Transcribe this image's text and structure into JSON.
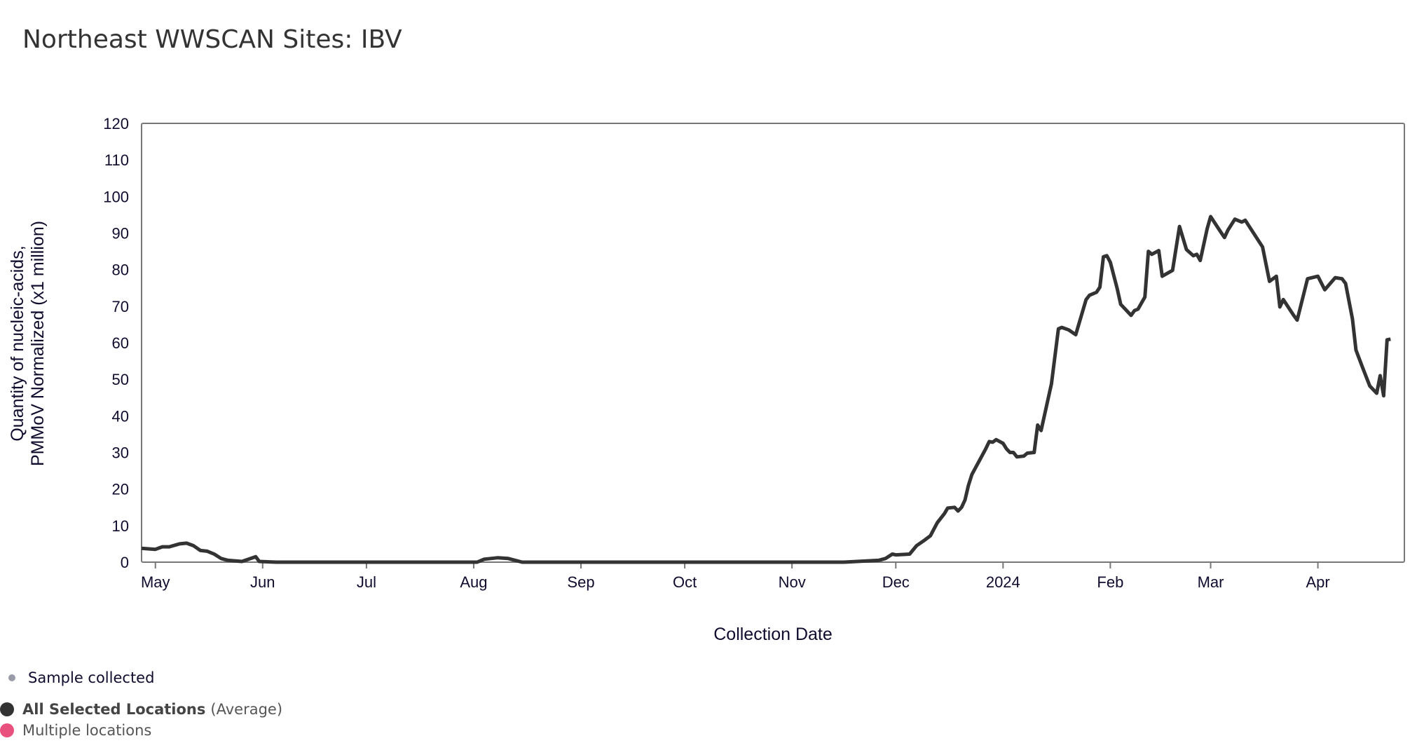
{
  "title": "Northeast WWSCAN Sites: IBV",
  "legend": {
    "sample": "Sample collected",
    "average_bold": "All Selected Locations",
    "average_suffix": "(Average)",
    "multiple": "Multiple locations",
    "colors": {
      "sample": "#9a9ba8",
      "average": "#333333",
      "multiple": "#e8507d"
    }
  },
  "chart_data": {
    "type": "line",
    "title": "Northeast WWSCAN Sites: IBV",
    "xlabel": "Collection Date",
    "ylabel": [
      "Quantity of nucleic-acids,",
      "PMMoV Normalized (x1 million)"
    ],
    "ylim": [
      0,
      120
    ],
    "xlim": [
      "2023-04-27",
      "2024-04-26"
    ],
    "yticks": [
      0,
      10,
      20,
      30,
      40,
      50,
      60,
      70,
      80,
      90,
      100,
      110,
      120
    ],
    "xticks": [
      {
        "date": "2023-05-01",
        "label": "May"
      },
      {
        "date": "2023-06-01",
        "label": "Jun"
      },
      {
        "date": "2023-07-01",
        "label": "Jul"
      },
      {
        "date": "2023-08-01",
        "label": "Aug"
      },
      {
        "date": "2023-09-01",
        "label": "Sep"
      },
      {
        "date": "2023-10-01",
        "label": "Oct"
      },
      {
        "date": "2023-11-01",
        "label": "Nov"
      },
      {
        "date": "2023-12-01",
        "label": "Dec"
      },
      {
        "date": "2024-01-01",
        "label": "2024"
      },
      {
        "date": "2024-02-01",
        "label": "Feb"
      },
      {
        "date": "2024-03-01",
        "label": "Mar"
      },
      {
        "date": "2024-04-01",
        "label": "Apr"
      }
    ],
    "grid": false,
    "series": [
      {
        "name": "All Selected Locations (Average)",
        "color": "#333333",
        "points": [
          [
            "2023-04-27",
            3.8
          ],
          [
            "2023-05-01",
            3.5
          ],
          [
            "2023-05-03",
            4.2
          ],
          [
            "2023-05-05",
            4.2
          ],
          [
            "2023-05-08",
            5.0
          ],
          [
            "2023-05-10",
            5.2
          ],
          [
            "2023-05-12",
            4.5
          ],
          [
            "2023-05-14",
            3.2
          ],
          [
            "2023-05-16",
            3.0
          ],
          [
            "2023-05-18",
            2.2
          ],
          [
            "2023-05-20",
            1.0
          ],
          [
            "2023-05-22",
            0.5
          ],
          [
            "2023-05-26",
            0.2
          ],
          [
            "2023-05-30",
            1.5
          ],
          [
            "2023-05-31",
            0.2
          ],
          [
            "2023-06-05",
            0
          ],
          [
            "2023-08-02",
            0
          ],
          [
            "2023-08-04",
            0.8
          ],
          [
            "2023-08-08",
            1.2
          ],
          [
            "2023-08-11",
            1.0
          ],
          [
            "2023-08-15",
            0
          ],
          [
            "2023-11-16",
            0
          ],
          [
            "2023-11-26",
            0.5
          ],
          [
            "2023-11-28",
            1.0
          ],
          [
            "2023-11-30",
            2.2
          ],
          [
            "2023-12-01",
            2.0
          ],
          [
            "2023-12-05",
            2.2
          ],
          [
            "2023-12-07",
            4.5
          ],
          [
            "2023-12-09",
            5.8
          ],
          [
            "2023-12-11",
            7.2
          ],
          [
            "2023-12-13",
            10.8
          ],
          [
            "2023-12-15",
            13.2
          ],
          [
            "2023-12-16",
            14.8
          ],
          [
            "2023-12-18",
            15.0
          ],
          [
            "2023-12-19",
            14.0
          ],
          [
            "2023-12-20",
            15.0
          ],
          [
            "2023-12-21",
            17.0
          ],
          [
            "2023-12-22",
            21.0
          ],
          [
            "2023-12-23",
            24.0
          ],
          [
            "2023-12-25",
            27.5
          ],
          [
            "2023-12-27",
            31.0
          ],
          [
            "2023-12-28",
            33.0
          ],
          [
            "2023-12-29",
            32.8
          ],
          [
            "2023-12-30",
            33.5
          ],
          [
            "2024-01-01",
            32.5
          ],
          [
            "2024-01-02",
            31.0
          ],
          [
            "2024-01-03",
            30.0
          ],
          [
            "2024-01-04",
            30.0
          ],
          [
            "2024-01-05",
            28.8
          ],
          [
            "2024-01-07",
            29.0
          ],
          [
            "2024-01-08",
            29.8
          ],
          [
            "2024-01-10",
            30.0
          ],
          [
            "2024-01-11",
            37.5
          ],
          [
            "2024-01-12",
            36.0
          ],
          [
            "2024-01-15",
            48.8
          ],
          [
            "2024-01-17",
            63.8
          ],
          [
            "2024-01-18",
            64.2
          ],
          [
            "2024-01-20",
            63.5
          ],
          [
            "2024-01-22",
            62.2
          ],
          [
            "2024-01-25",
            71.8
          ],
          [
            "2024-01-26",
            73.0
          ],
          [
            "2024-01-28",
            73.8
          ],
          [
            "2024-01-29",
            75.2
          ],
          [
            "2024-01-30",
            83.5
          ],
          [
            "2024-01-31",
            83.8
          ],
          [
            "2024-02-01",
            82.0
          ],
          [
            "2024-02-03",
            74.8
          ],
          [
            "2024-02-04",
            70.5
          ],
          [
            "2024-02-07",
            67.5
          ],
          [
            "2024-02-08",
            68.8
          ],
          [
            "2024-02-09",
            69.2
          ],
          [
            "2024-02-11",
            72.5
          ],
          [
            "2024-02-12",
            85.0
          ],
          [
            "2024-02-13",
            84.2
          ],
          [
            "2024-02-15",
            85.2
          ],
          [
            "2024-02-16",
            78.2
          ],
          [
            "2024-02-19",
            79.8
          ],
          [
            "2024-02-21",
            91.8
          ],
          [
            "2024-02-23",
            85.5
          ],
          [
            "2024-02-25",
            83.8
          ],
          [
            "2024-02-26",
            84.2
          ],
          [
            "2024-02-27",
            82.5
          ],
          [
            "2024-02-29",
            91.2
          ],
          [
            "2024-03-01",
            94.5
          ],
          [
            "2024-03-04",
            90.2
          ],
          [
            "2024-03-05",
            88.8
          ],
          [
            "2024-03-06",
            90.8
          ],
          [
            "2024-03-08",
            93.8
          ],
          [
            "2024-03-10",
            93.0
          ],
          [
            "2024-03-11",
            93.5
          ],
          [
            "2024-03-16",
            86.2
          ],
          [
            "2024-03-18",
            76.8
          ],
          [
            "2024-03-20",
            78.2
          ],
          [
            "2024-03-21",
            69.8
          ],
          [
            "2024-03-22",
            71.8
          ],
          [
            "2024-03-25",
            67.5
          ],
          [
            "2024-03-26",
            66.2
          ],
          [
            "2024-03-29",
            77.5
          ],
          [
            "2024-04-01",
            78.2
          ],
          [
            "2024-04-03",
            74.5
          ],
          [
            "2024-04-06",
            77.8
          ],
          [
            "2024-04-08",
            77.5
          ],
          [
            "2024-04-09",
            76.2
          ],
          [
            "2024-04-11",
            66.5
          ],
          [
            "2024-04-12",
            58.0
          ],
          [
            "2024-04-14",
            53.0
          ],
          [
            "2024-04-16",
            48.2
          ],
          [
            "2024-04-18",
            46.2
          ],
          [
            "2024-04-19",
            51.0
          ],
          [
            "2024-04-20",
            45.5
          ],
          [
            "2024-04-21",
            60.8
          ],
          [
            "2024-04-22",
            61.0
          ]
        ]
      }
    ]
  }
}
